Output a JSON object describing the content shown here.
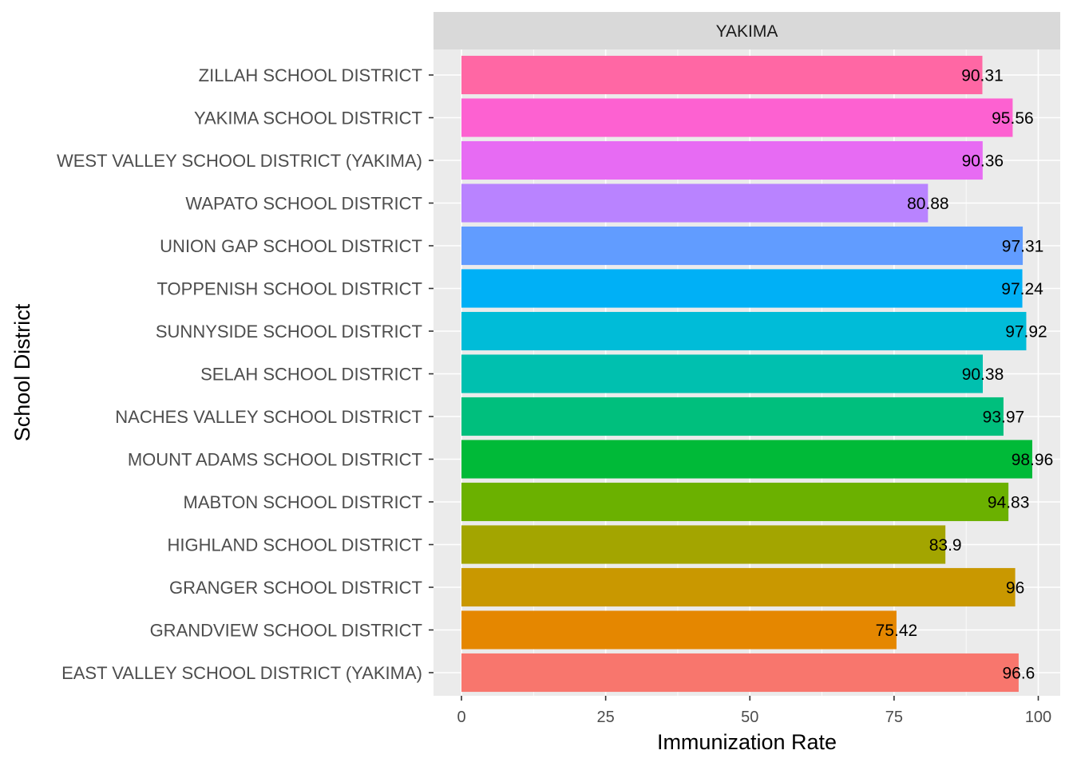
{
  "chart_data": {
    "type": "bar",
    "orientation": "horizontal",
    "facet_label": "YAKIMA",
    "xlabel": "Immunization Rate",
    "ylabel": "School District",
    "xlim": [
      0,
      100
    ],
    "x_ticks": [
      0,
      25,
      50,
      75,
      100
    ],
    "grid": true,
    "legend": "none",
    "categories": [
      "EAST VALLEY SCHOOL DISTRICT (YAKIMA)",
      "GRANDVIEW SCHOOL DISTRICT",
      "GRANGER SCHOOL DISTRICT",
      "HIGHLAND SCHOOL DISTRICT",
      "MABTON SCHOOL DISTRICT",
      "MOUNT ADAMS SCHOOL DISTRICT",
      "NACHES VALLEY SCHOOL DISTRICT",
      "SELAH SCHOOL DISTRICT",
      "SUNNYSIDE SCHOOL DISTRICT",
      "TOPPENISH SCHOOL DISTRICT",
      "UNION GAP SCHOOL DISTRICT",
      "WAPATO SCHOOL DISTRICT",
      "WEST VALLEY SCHOOL DISTRICT (YAKIMA)",
      "YAKIMA SCHOOL DISTRICT",
      "ZILLAH SCHOOL DISTRICT"
    ],
    "values": [
      96.6,
      75.42,
      96,
      83.9,
      94.83,
      98.96,
      93.97,
      90.38,
      97.92,
      97.24,
      97.31,
      80.88,
      90.36,
      95.56,
      90.31
    ],
    "value_labels": [
      "96.6",
      "75.42",
      "96",
      "83.9",
      "94.83",
      "98.96",
      "93.97",
      "90.38",
      "97.92",
      "97.24",
      "97.31",
      "80.88",
      "90.36",
      "95.56",
      "90.31"
    ],
    "colors": [
      "#F8766D",
      "#E58700",
      "#C99800",
      "#A3A500",
      "#6BB100",
      "#00BA38",
      "#00BF7D",
      "#00C0AF",
      "#00BCD8",
      "#00B0F6",
      "#619CFF",
      "#B983FF",
      "#E76BF3",
      "#FD61D1",
      "#FF67A4"
    ]
  }
}
